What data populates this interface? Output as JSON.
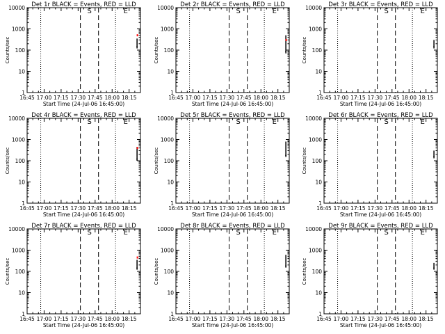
{
  "chart_data": [
    {
      "type": "line",
      "title": "Det 1r BLACK = Events, RED = LLD",
      "xlabel": "Start Time (24-Jul-06 16:45:00)",
      "ylabel": "Counts/sec",
      "x_ticks": [
        "16:45",
        "17:00",
        "17:15",
        "17:30",
        "17:45",
        "18:00",
        "18:15"
      ],
      "y_ticks": [
        "1",
        "10",
        "100",
        "1000",
        "10000"
      ],
      "ylim": [
        1,
        10000
      ],
      "y_scale": "log",
      "x_range_minutes": [
        0,
        100
      ],
      "markers": [
        {
          "label": "S",
          "t": 55
        },
        {
          "label": "E",
          "t": 87
        }
      ],
      "events_range": [
        120,
        350
      ],
      "lld_value": 500
    },
    {
      "type": "line",
      "title": "Det 2r BLACK = Events, RED = LLD",
      "xlabel": "Start Time (24-Jul-06 16:45:00)",
      "ylabel": "Counts/sec",
      "x_ticks": [
        "16:45",
        "17:00",
        "17:15",
        "17:30",
        "17:45",
        "18:00",
        "18:15"
      ],
      "y_ticks": [
        "1",
        "10",
        "100",
        "1000",
        "10000"
      ],
      "ylim": [
        1,
        10000
      ],
      "y_scale": "log",
      "x_range_minutes": [
        0,
        100
      ],
      "markers": [
        {
          "label": "S",
          "t": 55
        },
        {
          "label": "E",
          "t": 87
        }
      ],
      "events_range": [
        70,
        500
      ],
      "lld_value": 300
    },
    {
      "type": "line",
      "title": "Det 3r BLACK = Events, RED = LLD",
      "xlabel": "Start Time (24-Jul-06 16:45:00)",
      "ylabel": "Counts/sec",
      "x_ticks": [
        "16:45",
        "17:00",
        "17:15",
        "17:30",
        "17:45",
        "18:00",
        "18:15"
      ],
      "y_ticks": [
        "1",
        "10",
        "100",
        "1000",
        "10000"
      ],
      "ylim": [
        1,
        10000
      ],
      "y_scale": "log",
      "x_range_minutes": [
        0,
        100
      ],
      "markers": [
        {
          "label": "S",
          "t": 55
        },
        {
          "label": "E",
          "t": 87
        }
      ],
      "events_range": [
        120,
        300
      ],
      "lld_value": null
    },
    {
      "type": "line",
      "title": "Det 4r BLACK = Events, RED = LLD",
      "xlabel": "Start Time (24-Jul-06 16:45:00)",
      "ylabel": "Counts/sec",
      "x_ticks": [
        "16:45",
        "17:00",
        "17:15",
        "17:30",
        "17:45",
        "18:00",
        "18:15"
      ],
      "y_ticks": [
        "1",
        "10",
        "100",
        "1000",
        "10000"
      ],
      "ylim": [
        1,
        10000
      ],
      "y_scale": "log",
      "x_range_minutes": [
        0,
        100
      ],
      "markers": [
        {
          "label": "S",
          "t": 55
        },
        {
          "label": "E",
          "t": 87
        }
      ],
      "events_range": [
        100,
        450
      ],
      "lld_value": 400
    },
    {
      "type": "line",
      "title": "Det 5r BLACK = Events, RED = LLD",
      "xlabel": "Start Time (24-Jul-06 16:45:00)",
      "ylabel": "Counts/sec",
      "x_ticks": [
        "16:45",
        "17:00",
        "17:15",
        "17:30",
        "17:45",
        "18:00",
        "18:15"
      ],
      "y_ticks": [
        "1",
        "10",
        "100",
        "1000",
        "10000"
      ],
      "ylim": [
        1,
        10000
      ],
      "y_scale": "log",
      "x_range_minutes": [
        0,
        100
      ],
      "markers": [
        {
          "label": "S",
          "t": 55
        },
        {
          "label": "E",
          "t": 87
        }
      ],
      "events_range": [
        150,
        800
      ],
      "lld_value": null
    },
    {
      "type": "line",
      "title": "Det 6r BLACK = Events, RED = LLD",
      "xlabel": "Start Time (24-Jul-06 16:45:00)",
      "ylabel": "Counts/sec",
      "x_ticks": [
        "16:45",
        "17:00",
        "17:15",
        "17:30",
        "17:45",
        "18:00",
        "18:15"
      ],
      "y_ticks": [
        "1",
        "10",
        "100",
        "1000",
        "10000"
      ],
      "ylim": [
        1,
        10000
      ],
      "y_scale": "log",
      "x_range_minutes": [
        0,
        100
      ],
      "markers": [
        {
          "label": "S",
          "t": 55
        },
        {
          "label": "E",
          "t": 87
        }
      ],
      "events_range": [
        130,
        300
      ],
      "lld_value": null
    },
    {
      "type": "line",
      "title": "Det 7r BLACK = Events, RED = LLD",
      "xlabel": "Start Time (24-Jul-06 16:45:00)",
      "ylabel": "Counts/sec",
      "x_ticks": [
        "16:45",
        "17:00",
        "17:15",
        "17:30",
        "17:45",
        "18:00",
        "18:15"
      ],
      "y_ticks": [
        "1",
        "10",
        "100",
        "1000",
        "10000"
      ],
      "ylim": [
        1,
        10000
      ],
      "y_scale": "log",
      "x_range_minutes": [
        0,
        100
      ],
      "markers": [
        {
          "label": "S",
          "t": 55
        },
        {
          "label": "E",
          "t": 87
        }
      ],
      "events_range": [
        120,
        350
      ],
      "lld_value": 450
    },
    {
      "type": "line",
      "title": "Det 8r BLACK = Events, RED = LLD",
      "xlabel": "Start Time (24-Jul-06 16:45:00)",
      "ylabel": "Counts/sec",
      "x_ticks": [
        "16:45",
        "17:00",
        "17:15",
        "17:30",
        "17:45",
        "18:00",
        "18:15"
      ],
      "y_ticks": [
        "1",
        "10",
        "100",
        "1000",
        "10000"
      ],
      "ylim": [
        1,
        10000
      ],
      "y_scale": "log",
      "x_range_minutes": [
        0,
        100
      ],
      "markers": [
        {
          "label": "S",
          "t": 55
        },
        {
          "label": "E",
          "t": 87
        }
      ],
      "events_range": [
        150,
        600
      ],
      "lld_value": null
    },
    {
      "type": "line",
      "title": "Det 9r BLACK = Events, RED = LLD",
      "xlabel": "Start Time (24-Jul-06 16:45:00)",
      "ylabel": "Counts/sec",
      "x_ticks": [
        "16:45",
        "17:00",
        "17:15",
        "17:30",
        "17:45",
        "18:00",
        "18:15"
      ],
      "y_ticks": [
        "1",
        "10",
        "100",
        "1000",
        "10000"
      ],
      "ylim": [
        1,
        10000
      ],
      "y_scale": "log",
      "x_range_minutes": [
        0,
        100
      ],
      "markers": [
        {
          "label": "S",
          "t": 55
        },
        {
          "label": "E",
          "t": 87
        }
      ],
      "events_range": [
        120,
        250
      ],
      "lld_value": null
    }
  ],
  "colors": {
    "events": "#000000",
    "lld": "#ff0000",
    "axes": "#000000"
  }
}
